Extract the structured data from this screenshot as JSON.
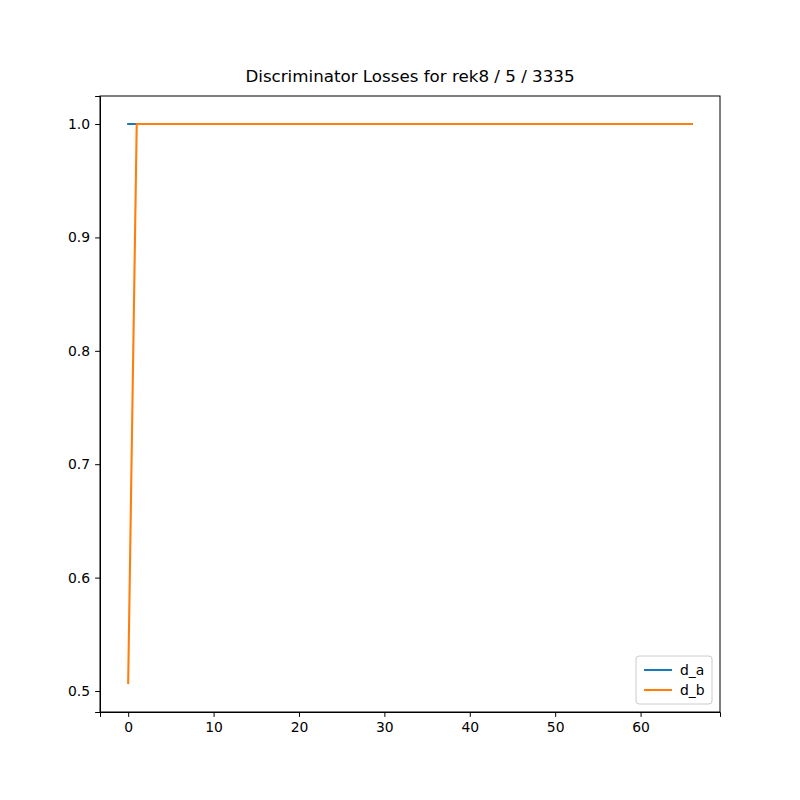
{
  "chart_data": {
    "type": "line",
    "title": "Discriminator Losses for rek8 / 5 / 3335",
    "x": [
      0,
      1,
      2,
      3,
      4,
      5,
      6,
      7,
      8,
      9,
      10,
      11,
      12,
      13,
      14,
      15,
      16,
      17,
      18,
      19,
      20,
      21,
      22,
      23,
      24,
      25,
      26,
      27,
      28,
      29,
      30,
      31,
      32,
      33,
      34,
      35,
      36,
      37,
      38,
      39,
      40,
      41,
      42,
      43,
      44,
      45,
      46,
      47,
      48,
      49,
      50,
      51,
      52,
      53,
      54,
      55,
      56,
      57,
      58,
      59,
      60,
      61,
      62,
      63,
      64,
      65,
      66
    ],
    "series": [
      {
        "name": "d_a",
        "color": "#1f77b4",
        "values": [
          1,
          1,
          1,
          1,
          1,
          1,
          1,
          1,
          1,
          1,
          1,
          1,
          1,
          1,
          1,
          1,
          1,
          1,
          1,
          1,
          1,
          1,
          1,
          1,
          1,
          1,
          1,
          1,
          1,
          1,
          1,
          1,
          1,
          1,
          1,
          1,
          1,
          1,
          1,
          1,
          1,
          1,
          1,
          1,
          1,
          1,
          1,
          1,
          1,
          1,
          1,
          1,
          1,
          1,
          1,
          1,
          1,
          1,
          1,
          1,
          1,
          1,
          1,
          1,
          1,
          1,
          1
        ]
      },
      {
        "name": "d_b",
        "color": "#ff7f0e",
        "values": [
          0.507,
          1,
          1,
          1,
          1,
          1,
          1,
          1,
          1,
          1,
          1,
          1,
          1,
          1,
          1,
          1,
          1,
          1,
          1,
          1,
          1,
          1,
          1,
          1,
          1,
          1,
          1,
          1,
          1,
          1,
          1,
          1,
          1,
          1,
          1,
          1,
          1,
          1,
          1,
          1,
          1,
          1,
          1,
          1,
          1,
          1,
          1,
          1,
          1,
          1,
          1,
          1,
          1,
          1,
          1,
          1,
          1,
          1,
          1,
          1,
          1,
          1,
          1,
          1,
          1,
          1,
          1
        ]
      }
    ],
    "xlim": [
      -3.3,
      69.3
    ],
    "xticks": [
      0,
      10,
      20,
      30,
      40,
      50,
      60
    ],
    "ylim": [
      0.4815,
      1.0247
    ],
    "yticks": [
      0.5,
      0.6,
      0.7,
      0.8,
      0.9,
      {
        "value": 1,
        "label": "1.0"
      }
    ],
    "grid": false,
    "legend": "lower right"
  }
}
